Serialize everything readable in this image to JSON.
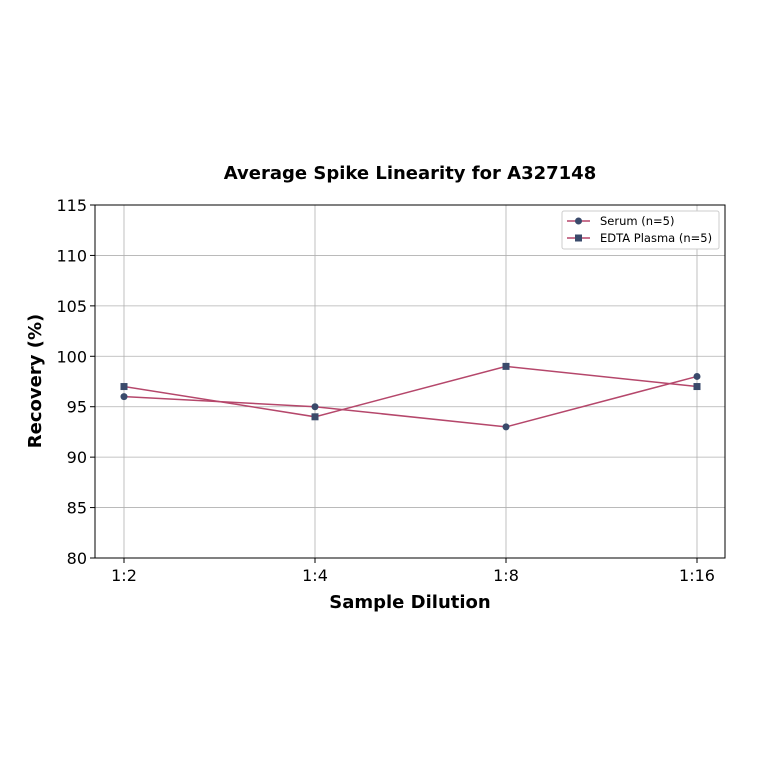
{
  "chart_data": {
    "type": "line",
    "title": "Average Spike Linearity for A327148",
    "xlabel": "Sample Dilution",
    "ylabel": "Recovery (%)",
    "categories": [
      "1:2",
      "1:4",
      "1:8",
      "1:16"
    ],
    "ylim": [
      80,
      115
    ],
    "yticks": [
      80,
      85,
      90,
      95,
      100,
      105,
      110,
      115
    ],
    "grid": true,
    "legend_position": "top-right",
    "series": [
      {
        "name": "Serum (n=5)",
        "values": [
          96,
          95,
          93,
          98
        ],
        "marker": "circle",
        "line_color": "#b5476b",
        "marker_color": "#3a4a6b"
      },
      {
        "name": "EDTA Plasma (n=5)",
        "values": [
          97,
          94,
          99,
          97
        ],
        "marker": "square",
        "line_color": "#b5476b",
        "marker_color": "#3a4a6b"
      }
    ]
  }
}
